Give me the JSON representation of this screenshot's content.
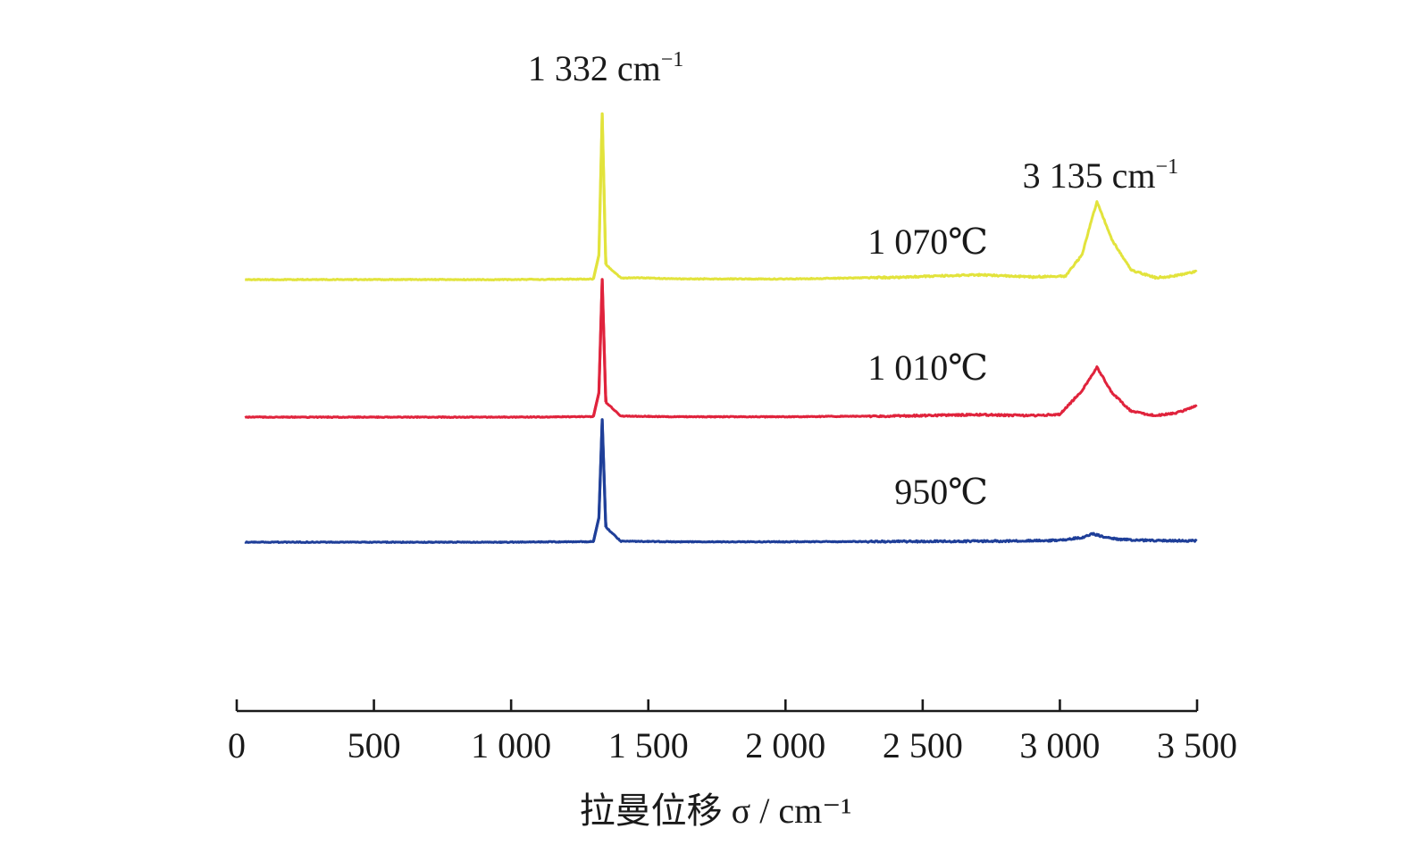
{
  "chart_data": {
    "type": "line",
    "xlabel": "拉曼位移 σ / cm⁻¹",
    "xlim": [
      0,
      3500
    ],
    "xticks": [
      0,
      500,
      1000,
      1500,
      2000,
      2500,
      3000,
      3500
    ],
    "xtick_labels": [
      "0",
      "500",
      "1 000",
      "1 500",
      "2 000",
      "2 500",
      "3 000",
      "3 500"
    ],
    "y_axis_shown": false,
    "grid": false,
    "series": [
      {
        "name": "1 070℃",
        "color": "#e2e33c",
        "baseline": 12,
        "x": [
          30,
          500,
          1000,
          1300,
          1320,
          1332,
          1345,
          1400,
          1450,
          1600,
          2000,
          2400,
          2700,
          2900,
          3020,
          3080,
          3135,
          3190,
          3260,
          3350,
          3420,
          3470,
          3500
        ],
        "y": [
          12,
          12,
          12,
          12.3,
          25,
          100,
          20,
          12.8,
          13,
          12.4,
          12.3,
          13.2,
          14.5,
          13.4,
          13.8,
          25,
          53.5,
          33,
          17,
          13,
          14,
          15.5,
          16.5
        ]
      },
      {
        "name": "1 010℃",
        "color": "#e0233c",
        "baseline": 12,
        "x": [
          30,
          500,
          1000,
          1300,
          1320,
          1332,
          1345,
          1400,
          1600,
          2000,
          2400,
          2700,
          2900,
          3000,
          3080,
          3135,
          3190,
          3260,
          3350,
          3420,
          3470,
          3500
        ],
        "y": [
          12,
          12,
          12,
          12.3,
          25,
          85,
          20,
          12.6,
          12.2,
          12.2,
          12.6,
          13.3,
          12.8,
          13.5,
          26,
          38.5,
          25,
          15,
          12.8,
          14,
          16.5,
          18
        ]
      },
      {
        "name": "950℃",
        "color": "#1f3f99",
        "baseline": 12,
        "x": [
          30,
          500,
          1000,
          1300,
          1320,
          1332,
          1345,
          1400,
          1600,
          2000,
          2500,
          2800,
          3000,
          3080,
          3120,
          3160,
          3220,
          3300,
          3400,
          3500
        ],
        "y": [
          12,
          12,
          12,
          12.3,
          25,
          77,
          20,
          12.5,
          12.2,
          12.2,
          12.4,
          12.6,
          13,
          14.5,
          16.5,
          14.8,
          13.5,
          13,
          12.8,
          12.8
        ]
      }
    ],
    "annotations": [
      {
        "text": "1 332 cm",
        "sup": "−1",
        "x": 1332
      },
      {
        "text": "3 135 cm",
        "sup": "−1",
        "x": 3135
      }
    ],
    "series_labels": [
      {
        "series": "1 070℃"
      },
      {
        "series": "1 010℃"
      },
      {
        "series": "950℃"
      }
    ]
  }
}
